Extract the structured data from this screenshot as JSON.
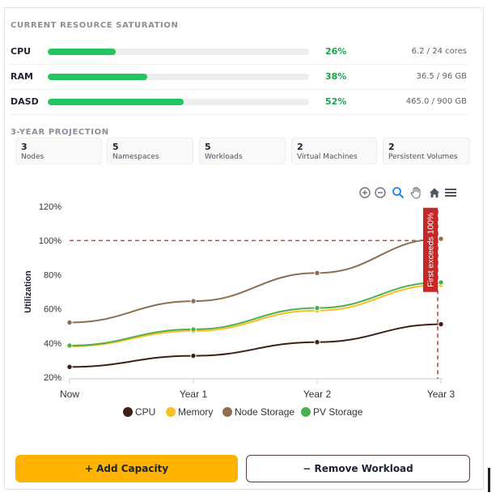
{
  "saturation": {
    "title": "CURRENT RESOURCE SATURATION",
    "rows": [
      {
        "name": "CPU",
        "percent_label": "26%",
        "percent": 26,
        "amount": "6.2 / 24 cores"
      },
      {
        "name": "RAM",
        "percent_label": "38%",
        "percent": 38,
        "amount": "36.5 / 96 GB"
      },
      {
        "name": "DASD",
        "percent_label": "52%",
        "percent": 52,
        "amount": "465.0 / 900 GB"
      }
    ]
  },
  "projection": {
    "title": "3-YEAR PROJECTION",
    "stats": [
      {
        "value": "3",
        "label": "Nodes"
      },
      {
        "value": "5",
        "label": "Namespaces"
      },
      {
        "value": "5",
        "label": "Workloads"
      },
      {
        "value": "2",
        "label": "Virtual Machines"
      },
      {
        "value": "2",
        "label": "Persistent Volumes"
      }
    ]
  },
  "toolbar": {
    "icons": [
      "zoom-in-icon",
      "zoom-out-icon",
      "zoom-selection-icon",
      "pan-hand-icon",
      "home-reset-icon",
      "menu-icon"
    ]
  },
  "chart_data": {
    "type": "line",
    "categories": [
      "Now",
      "Year 1",
      "Year 2",
      "Year 3"
    ],
    "ylabel": "Utilization",
    "ylim": [
      20,
      120
    ],
    "yticks": [
      "20%",
      "40%",
      "60%",
      "80%",
      "100%",
      "120%"
    ],
    "threshold": {
      "value": 100,
      "color": "#d32f2f"
    },
    "annotation": {
      "text": "First exceeds 100%",
      "at": "Year 3",
      "color": "#c62828"
    },
    "legend_position": "bottom",
    "series": [
      {
        "name": "CPU",
        "color": "#3e2016",
        "values": [
          26,
          32.5,
          40.5,
          51
        ]
      },
      {
        "name": "Memory",
        "color": "#fbbf24",
        "values": [
          38,
          47,
          59,
          74
        ]
      },
      {
        "name": "Node Storage",
        "color": "#8d6e4f",
        "values": [
          52,
          64.5,
          81,
          101
        ]
      },
      {
        "name": "PV Storage",
        "color": "#4caf50",
        "values": [
          38.5,
          48,
          60.5,
          75.5
        ]
      }
    ]
  },
  "actions": {
    "add_label": "+ Add Capacity",
    "remove_label": "− Remove Workload"
  }
}
